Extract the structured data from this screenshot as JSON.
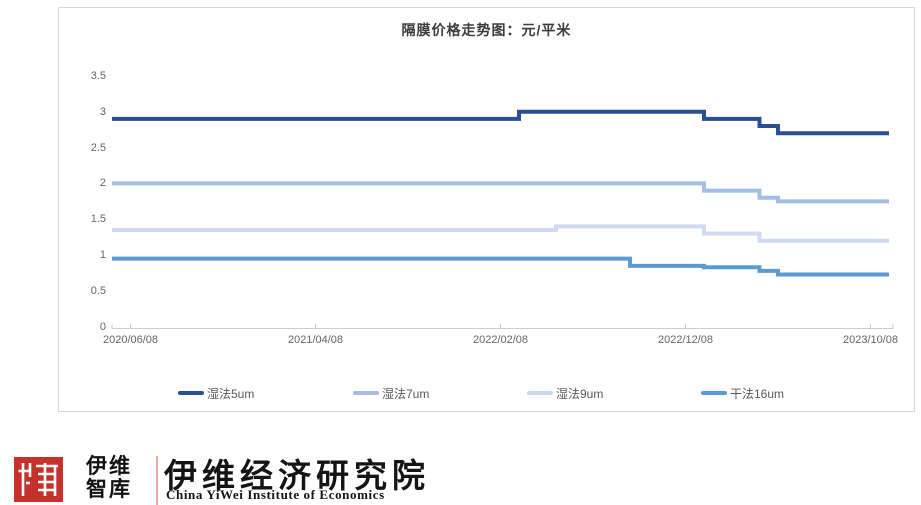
{
  "chart_data": {
    "type": "line",
    "title": "隔膜价格走势图：元/平米",
    "xlabel": "",
    "ylabel": "",
    "unit": "元/平米",
    "line_style": "step",
    "grid": false,
    "legend_position": "bottom",
    "ylim": [
      0,
      3.5
    ],
    "y_ticks": [
      "3.5",
      "3",
      "2.5",
      "2",
      "1.5",
      "1",
      "0.5",
      "0"
    ],
    "y_tick_values": [
      3.5,
      3,
      2.5,
      2,
      1.5,
      1,
      0.5,
      0
    ],
    "x": [
      "2020/05",
      "2020/06",
      "2020/07",
      "2020/08",
      "2020/09",
      "2020/10",
      "2020/11",
      "2020/12",
      "2021/01",
      "2021/02",
      "2021/03",
      "2021/04",
      "2021/05",
      "2021/06",
      "2021/07",
      "2021/08",
      "2021/09",
      "2021/10",
      "2021/11",
      "2021/12",
      "2022/01",
      "2022/02",
      "2022/03",
      "2022/04",
      "2022/05",
      "2022/06",
      "2022/07",
      "2022/08",
      "2022/09",
      "2022/10",
      "2022/11",
      "2022/12",
      "2023/01",
      "2023/02",
      "2023/03",
      "2023/04",
      "2023/05",
      "2023/06",
      "2023/07",
      "2023/08",
      "2023/09",
      "2023/10",
      "2023/11"
    ],
    "x_tick_labels": [
      "2020/06/08",
      "2021/04/08",
      "2022/02/08",
      "2022/12/08",
      "2023/10/08"
    ],
    "x_tick_indices": [
      1,
      11,
      21,
      31,
      41
    ],
    "series": [
      {
        "name": "湿法5um",
        "color": "#2B4F94",
        "values": [
          2.9,
          2.9,
          2.9,
          2.9,
          2.9,
          2.9,
          2.9,
          2.9,
          2.9,
          2.9,
          2.9,
          2.9,
          2.9,
          2.9,
          2.9,
          2.9,
          2.9,
          2.9,
          2.9,
          2.9,
          2.9,
          2.9,
          3.0,
          3.0,
          3.0,
          3.0,
          3.0,
          3.0,
          3.0,
          3.0,
          3.0,
          3.0,
          2.9,
          2.9,
          2.9,
          2.8,
          2.7,
          2.7,
          2.7,
          2.7,
          2.7,
          2.7,
          2.7
        ]
      },
      {
        "name": "湿法7um",
        "color": "#A5BCE3",
        "values": [
          2.0,
          2.0,
          2.0,
          2.0,
          2.0,
          2.0,
          2.0,
          2.0,
          2.0,
          2.0,
          2.0,
          2.0,
          2.0,
          2.0,
          2.0,
          2.0,
          2.0,
          2.0,
          2.0,
          2.0,
          2.0,
          2.0,
          2.0,
          2.0,
          2.0,
          2.0,
          2.0,
          2.0,
          2.0,
          2.0,
          2.0,
          2.0,
          1.9,
          1.9,
          1.9,
          1.8,
          1.75,
          1.75,
          1.75,
          1.75,
          1.75,
          1.75,
          1.75
        ]
      },
      {
        "name": "湿法9um",
        "color": "#CDDAF1",
        "values": [
          1.35,
          1.35,
          1.35,
          1.35,
          1.35,
          1.35,
          1.35,
          1.35,
          1.35,
          1.35,
          1.35,
          1.35,
          1.35,
          1.35,
          1.35,
          1.35,
          1.35,
          1.35,
          1.35,
          1.35,
          1.35,
          1.35,
          1.35,
          1.35,
          1.4,
          1.4,
          1.4,
          1.4,
          1.4,
          1.4,
          1.4,
          1.4,
          1.3,
          1.3,
          1.3,
          1.2,
          1.2,
          1.2,
          1.2,
          1.2,
          1.2,
          1.2,
          1.2
        ]
      },
      {
        "name": "干法16um",
        "color": "#5B9BD5",
        "values": [
          0.95,
          0.95,
          0.95,
          0.95,
          0.95,
          0.95,
          0.95,
          0.95,
          0.95,
          0.95,
          0.95,
          0.95,
          0.95,
          0.95,
          0.95,
          0.95,
          0.95,
          0.95,
          0.95,
          0.95,
          0.95,
          0.95,
          0.95,
          0.95,
          0.95,
          0.95,
          0.95,
          0.95,
          0.85,
          0.85,
          0.85,
          0.85,
          0.83,
          0.83,
          0.83,
          0.78,
          0.73,
          0.73,
          0.73,
          0.73,
          0.73,
          0.73,
          0.73
        ]
      }
    ]
  },
  "logo": {
    "brand_cn_line1": "伊维",
    "brand_cn_line2": "智库",
    "institute_cn": "伊维经济研究院",
    "institute_en": "China YiWei Institute of Economics",
    "accent_red": "#c5322b"
  },
  "colors": {
    "card_border": "#d9d9d9",
    "axis": "#cccccc",
    "tick_text": "#666666",
    "title_text": "#3c3c3c"
  }
}
